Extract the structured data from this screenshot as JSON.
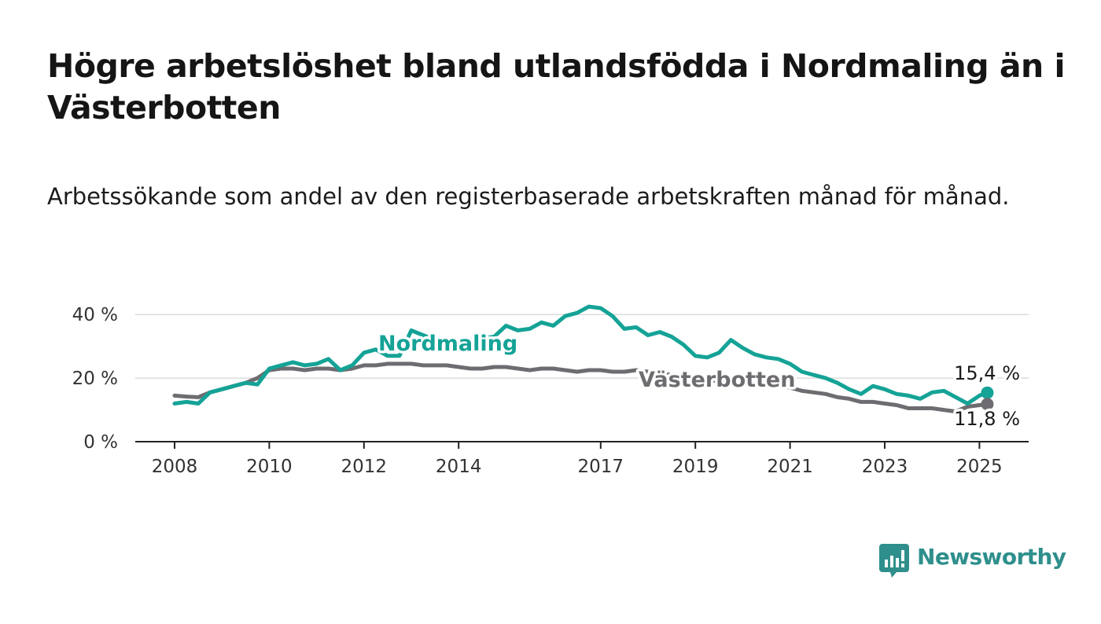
{
  "header": {
    "title": "Högre arbetslöshet bland utlandsfödda i Nordmaling än i Västerbotten",
    "subtitle": "Arbetssökande som andel av den registerbaserade arbetskraften månad för månad."
  },
  "brand": {
    "name": "Newsworthy",
    "color": "#2f8f8c"
  },
  "chart_data": {
    "type": "line",
    "title": "Högre arbetslöshet bland utlandsfödda i Nordmaling än i Västerbotten",
    "subtitle": "Arbetssökande som andel av den registerbaserade arbetskraften månad för månad.",
    "xlabel": "",
    "ylabel": "",
    "xlim": [
      "2008-01",
      "2025-03"
    ],
    "ylim": [
      0,
      45
    ],
    "x_ticks": [
      "2008",
      "2010",
      "2012",
      "2014",
      "2017",
      "2019",
      "2021",
      "2023",
      "2025"
    ],
    "y_ticks": [
      0,
      20,
      40
    ],
    "y_tick_labels": [
      "0 %",
      "20 %",
      "40 %"
    ],
    "grid": true,
    "legend": "inline labels",
    "series": [
      {
        "name": "Nordmaling",
        "color": "#14a396",
        "points": [
          [
            "2008-01",
            12.0
          ],
          [
            "2008-04",
            12.5
          ],
          [
            "2008-07",
            12.0
          ],
          [
            "2008-10",
            15.5
          ],
          [
            "2009-01",
            16.5
          ],
          [
            "2009-04",
            17.5
          ],
          [
            "2009-07",
            18.5
          ],
          [
            "2009-10",
            18.0
          ],
          [
            "2010-01",
            23.0
          ],
          [
            "2010-04",
            24.0
          ],
          [
            "2010-07",
            25.0
          ],
          [
            "2010-10",
            24.0
          ],
          [
            "2011-01",
            24.5
          ],
          [
            "2011-04",
            26.0
          ],
          [
            "2011-07",
            22.5
          ],
          [
            "2011-10",
            24.0
          ],
          [
            "2012-01",
            28.0
          ],
          [
            "2012-04",
            29.0
          ],
          [
            "2012-07",
            27.0
          ],
          [
            "2012-10",
            27.0
          ],
          [
            "2013-01",
            35.0
          ],
          [
            "2013-04",
            33.5
          ],
          [
            "2013-07",
            32.0
          ],
          [
            "2013-10",
            30.5
          ],
          [
            "2014-01",
            31.5
          ],
          [
            "2014-04",
            32.0
          ],
          [
            "2014-07",
            32.5
          ],
          [
            "2014-10",
            33.0
          ],
          [
            "2015-01",
            36.5
          ],
          [
            "2015-04",
            35.0
          ],
          [
            "2015-07",
            35.5
          ],
          [
            "2015-10",
            37.5
          ],
          [
            "2016-01",
            36.5
          ],
          [
            "2016-04",
            39.5
          ],
          [
            "2016-07",
            40.5
          ],
          [
            "2016-10",
            42.5
          ],
          [
            "2017-01",
            42.0
          ],
          [
            "2017-04",
            39.5
          ],
          [
            "2017-07",
            35.5
          ],
          [
            "2017-10",
            36.0
          ],
          [
            "2018-01",
            33.5
          ],
          [
            "2018-04",
            34.5
          ],
          [
            "2018-07",
            33.0
          ],
          [
            "2018-10",
            30.5
          ],
          [
            "2019-01",
            27.0
          ],
          [
            "2019-04",
            26.5
          ],
          [
            "2019-07",
            28.0
          ],
          [
            "2019-10",
            32.0
          ],
          [
            "2020-01",
            29.5
          ],
          [
            "2020-04",
            27.5
          ],
          [
            "2020-07",
            26.5
          ],
          [
            "2020-10",
            26.0
          ],
          [
            "2021-01",
            24.5
          ],
          [
            "2021-04",
            22.0
          ],
          [
            "2021-07",
            21.0
          ],
          [
            "2021-10",
            20.0
          ],
          [
            "2022-01",
            18.5
          ],
          [
            "2022-04",
            16.5
          ],
          [
            "2022-07",
            15.0
          ],
          [
            "2022-10",
            17.5
          ],
          [
            "2023-01",
            16.5
          ],
          [
            "2023-04",
            15.0
          ],
          [
            "2023-07",
            14.5
          ],
          [
            "2023-10",
            13.5
          ],
          [
            "2024-01",
            15.5
          ],
          [
            "2024-04",
            16.0
          ],
          [
            "2024-07",
            14.0
          ],
          [
            "2024-10",
            12.0
          ],
          [
            "2025-01",
            14.5
          ],
          [
            "2025-03",
            15.4
          ]
        ]
      },
      {
        "name": "Västerbotten",
        "color": "#6e6c70",
        "points": [
          [
            "2008-01",
            14.5
          ],
          [
            "2008-04",
            14.2
          ],
          [
            "2008-07",
            14.0
          ],
          [
            "2008-10",
            15.5
          ],
          [
            "2009-01",
            16.5
          ],
          [
            "2009-04",
            17.5
          ],
          [
            "2009-07",
            18.5
          ],
          [
            "2009-10",
            20.0
          ],
          [
            "2010-01",
            22.5
          ],
          [
            "2010-04",
            23.0
          ],
          [
            "2010-07",
            23.0
          ],
          [
            "2010-10",
            22.5
          ],
          [
            "2011-01",
            23.0
          ],
          [
            "2011-04",
            23.0
          ],
          [
            "2011-07",
            22.5
          ],
          [
            "2011-10",
            23.0
          ],
          [
            "2012-01",
            24.0
          ],
          [
            "2012-04",
            24.0
          ],
          [
            "2012-07",
            24.5
          ],
          [
            "2012-10",
            24.5
          ],
          [
            "2013-01",
            24.5
          ],
          [
            "2013-04",
            24.0
          ],
          [
            "2013-07",
            24.0
          ],
          [
            "2013-10",
            24.0
          ],
          [
            "2014-01",
            23.5
          ],
          [
            "2014-04",
            23.0
          ],
          [
            "2014-07",
            23.0
          ],
          [
            "2014-10",
            23.5
          ],
          [
            "2015-01",
            23.5
          ],
          [
            "2015-04",
            23.0
          ],
          [
            "2015-07",
            22.5
          ],
          [
            "2015-10",
            23.0
          ],
          [
            "2016-01",
            23.0
          ],
          [
            "2016-04",
            22.5
          ],
          [
            "2016-07",
            22.0
          ],
          [
            "2016-10",
            22.5
          ],
          [
            "2017-01",
            22.5
          ],
          [
            "2017-04",
            22.0
          ],
          [
            "2017-07",
            22.0
          ],
          [
            "2017-10",
            22.5
          ],
          [
            "2018-01",
            22.0
          ],
          [
            "2018-04",
            21.5
          ],
          [
            "2018-07",
            21.0
          ],
          [
            "2018-10",
            20.5
          ],
          [
            "2019-01",
            20.0
          ],
          [
            "2019-04",
            19.5
          ],
          [
            "2019-07",
            19.0
          ],
          [
            "2019-10",
            19.0
          ],
          [
            "2020-01",
            18.5
          ],
          [
            "2020-04",
            18.0
          ],
          [
            "2020-07",
            17.5
          ],
          [
            "2020-10",
            17.5
          ],
          [
            "2021-01",
            17.0
          ],
          [
            "2021-04",
            16.0
          ],
          [
            "2021-07",
            15.5
          ],
          [
            "2021-10",
            15.0
          ],
          [
            "2022-01",
            14.0
          ],
          [
            "2022-04",
            13.5
          ],
          [
            "2022-07",
            12.5
          ],
          [
            "2022-10",
            12.5
          ],
          [
            "2023-01",
            12.0
          ],
          [
            "2023-04",
            11.5
          ],
          [
            "2023-07",
            10.5
          ],
          [
            "2023-10",
            10.5
          ],
          [
            "2024-01",
            10.5
          ],
          [
            "2024-04",
            10.0
          ],
          [
            "2024-07",
            9.5
          ],
          [
            "2024-10",
            11.0
          ],
          [
            "2025-01",
            11.5
          ],
          [
            "2025-03",
            11.8
          ]
        ]
      }
    ],
    "end_labels": [
      {
        "series": "Nordmaling",
        "text": "15,4 %"
      },
      {
        "series": "Västerbotten",
        "text": "11,8 %"
      }
    ]
  }
}
